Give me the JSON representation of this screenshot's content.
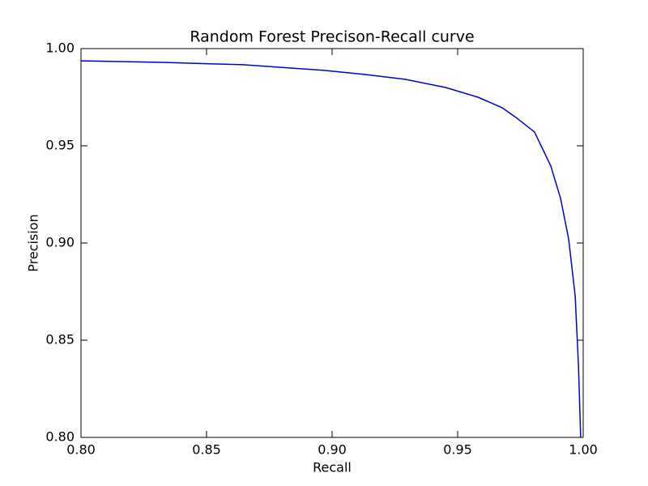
{
  "chart_data": {
    "type": "line",
    "title": "Random Forest Precison-Recall curve",
    "x_label": "Recall",
    "y_label": "Precision",
    "x": [
      0.8,
      0.8323,
      0.8645,
      0.8968,
      0.9129,
      0.929,
      0.9452,
      0.9581,
      0.9677,
      0.9732,
      0.9806,
      0.9871,
      0.991,
      0.9942,
      0.9968,
      0.9981,
      0.999
    ],
    "series": [
      {
        "name": "Precision",
        "color": "#0000cc",
        "values": [
          0.9937,
          0.9929,
          0.9917,
          0.9888,
          0.9867,
          0.9842,
          0.98,
          0.975,
          0.9696,
          0.9646,
          0.9571,
          0.9396,
          0.9229,
          0.9021,
          0.8729,
          0.8375,
          0.8
        ]
      }
    ],
    "xlim": [
      0.8,
      1.0
    ],
    "ylim": [
      0.8,
      1.0
    ],
    "xticks": [
      {
        "value": 0.8,
        "label": "0.80"
      },
      0.85,
      {
        "value": 0.9,
        "label": "0.90"
      },
      0.95,
      {
        "value": 1.0,
        "label": "1.00"
      }
    ],
    "yticks": [
      {
        "value": 0.8,
        "label": "0.80"
      },
      0.85,
      {
        "value": 0.9,
        "label": "0.90"
      },
      0.95,
      {
        "value": 1.0,
        "label": "1.00"
      }
    ],
    "grid": false
  }
}
